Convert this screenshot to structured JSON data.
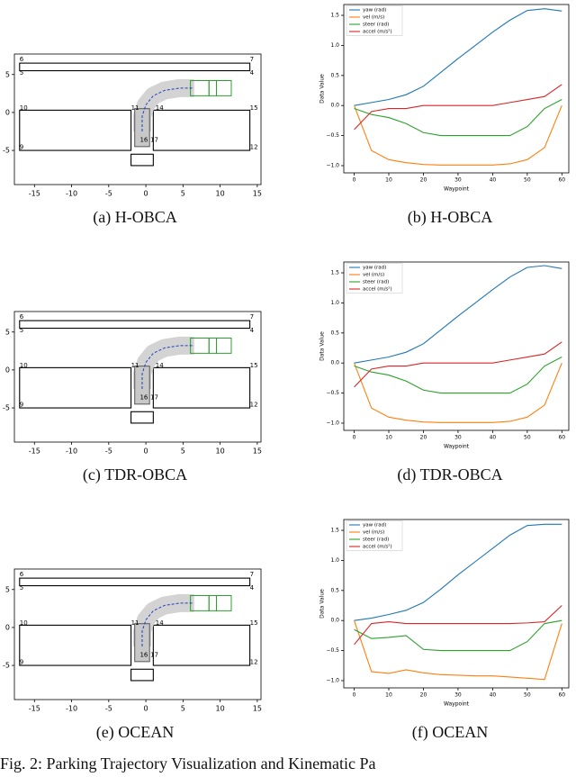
{
  "caption": "Fig. 2: Parking Trajectory Visualization and Kinematic Pa",
  "chart_data": [
    {
      "type": "trajectory",
      "subcaption": "(a) H-OBCA",
      "xlim": [
        -17.7,
        15.5
      ],
      "ylim": [
        -9.5,
        7.7
      ],
      "xticks": [
        -15,
        -10,
        -5,
        0,
        5,
        10,
        15
      ],
      "yticks": [
        -5,
        0,
        5
      ],
      "obstacles": [
        {
          "x": [
            -17,
            14
          ],
          "y": [
            5.5,
            6.5
          ]
        },
        {
          "x": [
            -17,
            -2
          ],
          "y": [
            -5,
            0.3
          ]
        },
        {
          "x": [
            1,
            14
          ],
          "y": [
            -5,
            0.3
          ]
        },
        {
          "x": [
            -2,
            1
          ],
          "y": [
            -7,
            -5.5
          ]
        }
      ],
      "labels": [
        {
          "text": "6",
          "x": -17,
          "y": 7
        },
        {
          "text": "7",
          "x": 14,
          "y": 7
        },
        {
          "text": "5",
          "x": -17,
          "y": 5.2
        },
        {
          "text": "4",
          "x": 14,
          "y": 5.2
        },
        {
          "text": "10",
          "x": -17,
          "y": 0.6
        },
        {
          "text": "11",
          "x": -2,
          "y": 0.6
        },
        {
          "text": "14",
          "x": 1.3,
          "y": 0.6
        },
        {
          "text": "15",
          "x": 14,
          "y": 0.6
        },
        {
          "text": "9",
          "x": -17,
          "y": -4.6
        },
        {
          "text": "12",
          "x": 14,
          "y": -4.6
        },
        {
          "text": "16",
          "x": -0.8,
          "y": -3.6
        },
        {
          "text": "17",
          "x": 0.6,
          "y": -3.6
        }
      ],
      "trajectory": {
        "x": [
          -0.5,
          -0.5,
          0,
          1,
          2.5,
          4.5,
          6.5
        ],
        "y": [
          -2.5,
          -0.5,
          1,
          2.2,
          2.9,
          3.2,
          3.2
        ]
      },
      "vehicle_boxes": [
        {
          "x": [
            -1.5,
            0.5
          ],
          "y": [
            -4.5,
            0.5
          ]
        },
        {
          "x": [
            6,
            8.5
          ],
          "y": [
            2.2,
            4.2
          ]
        },
        {
          "x": [
            8.5,
            9.5
          ],
          "y": [
            2.2,
            4.2
          ]
        },
        {
          "x": [
            9.5,
            11.5
          ],
          "y": [
            2.2,
            4.2
          ]
        }
      ]
    },
    {
      "type": "line",
      "subcaption": "(b) H-OBCA",
      "x_label": "Waypoint",
      "y_label": "Data Value",
      "xlim": [
        -3,
        62
      ],
      "ylim": [
        -1.12,
        1.68
      ],
      "xticks": [
        0,
        10,
        20,
        30,
        40,
        50,
        60
      ],
      "yticks": [
        {
          "value": -1,
          "label": "−1.0"
        },
        {
          "value": -0.5,
          "label": "−0.5"
        },
        {
          "value": 0,
          "label": "0.0"
        },
        {
          "value": 0.5,
          "label": "0.5"
        },
        {
          "value": 1,
          "label": "1.0"
        },
        {
          "value": 1.5,
          "label": "1.5"
        }
      ],
      "x": [
        0,
        5,
        10,
        15,
        20,
        25,
        30,
        35,
        40,
        45,
        50,
        55,
        60
      ],
      "series": [
        {
          "name": "yaw (rad)",
          "color": "#1f77b4",
          "values": [
            0.0,
            0.05,
            0.1,
            0.18,
            0.32,
            0.55,
            0.78,
            1.0,
            1.22,
            1.42,
            1.58,
            1.61,
            1.57
          ]
        },
        {
          "name": "vel (m/s)",
          "color": "#ff7f0e",
          "values": [
            0.0,
            -0.75,
            -0.9,
            -0.95,
            -0.98,
            -0.99,
            -0.99,
            -0.99,
            -0.99,
            -0.97,
            -0.9,
            -0.7,
            0.0
          ]
        },
        {
          "name": "steer (rad)",
          "color": "#2ca02c",
          "values": [
            -0.05,
            -0.15,
            -0.2,
            -0.3,
            -0.45,
            -0.5,
            -0.5,
            -0.5,
            -0.5,
            -0.5,
            -0.35,
            -0.05,
            0.1
          ]
        },
        {
          "name": "accel (m/s²)",
          "color": "#d62728",
          "values": [
            -0.4,
            -0.1,
            -0.05,
            -0.05,
            0.0,
            0.0,
            0.0,
            0.0,
            0.0,
            0.05,
            0.1,
            0.15,
            0.35
          ]
        }
      ]
    },
    {
      "type": "trajectory",
      "subcaption": "(c) TDR-OBCA",
      "xlim": [
        -17.7,
        15.5
      ],
      "ylim": [
        -9.5,
        7.7
      ],
      "xticks": [
        -15,
        -10,
        -5,
        0,
        5,
        10,
        15
      ],
      "yticks": [
        -5,
        0,
        5
      ],
      "obstacles": [
        {
          "x": [
            -17,
            14
          ],
          "y": [
            5.5,
            6.5
          ]
        },
        {
          "x": [
            -17,
            -2
          ],
          "y": [
            -5,
            0.3
          ]
        },
        {
          "x": [
            1,
            14
          ],
          "y": [
            -5,
            0.3
          ]
        },
        {
          "x": [
            -2,
            1
          ],
          "y": [
            -7,
            -5.5
          ]
        }
      ],
      "labels": [
        {
          "text": "6",
          "x": -17,
          "y": 7
        },
        {
          "text": "7",
          "x": 14,
          "y": 7
        },
        {
          "text": "5",
          "x": -17,
          "y": 5.2
        },
        {
          "text": "4",
          "x": 14,
          "y": 5.2
        },
        {
          "text": "10",
          "x": -17,
          "y": 0.6
        },
        {
          "text": "11",
          "x": -2,
          "y": 0.6
        },
        {
          "text": "14",
          "x": 1.3,
          "y": 0.6
        },
        {
          "text": "15",
          "x": 14,
          "y": 0.6
        },
        {
          "text": "9",
          "x": -17,
          "y": -4.6
        },
        {
          "text": "12",
          "x": 14,
          "y": -4.6
        },
        {
          "text": "16",
          "x": -0.8,
          "y": -3.6
        },
        {
          "text": "17",
          "x": 0.6,
          "y": -3.6
        }
      ],
      "trajectory": {
        "x": [
          -0.5,
          -0.5,
          0,
          1,
          2.5,
          4.5,
          6.5
        ],
        "y": [
          -2.5,
          -0.5,
          1,
          2.2,
          2.9,
          3.2,
          3.2
        ]
      },
      "vehicle_boxes": [
        {
          "x": [
            -1.5,
            0.5
          ],
          "y": [
            -4.5,
            0.5
          ]
        },
        {
          "x": [
            6,
            8.5
          ],
          "y": [
            2.2,
            4.2
          ]
        },
        {
          "x": [
            8.5,
            9.5
          ],
          "y": [
            2.2,
            4.2
          ]
        },
        {
          "x": [
            9.5,
            11.5
          ],
          "y": [
            2.2,
            4.2
          ]
        }
      ]
    },
    {
      "type": "line",
      "subcaption": "(d) TDR-OBCA",
      "x_label": "Waypoint",
      "y_label": "Data Value",
      "xlim": [
        -3,
        62
      ],
      "ylim": [
        -1.12,
        1.68
      ],
      "xticks": [
        0,
        10,
        20,
        30,
        40,
        50,
        60
      ],
      "yticks": [
        {
          "value": -1,
          "label": "−1.0"
        },
        {
          "value": -0.5,
          "label": "−0.5"
        },
        {
          "value": 0,
          "label": "0.0"
        },
        {
          "value": 0.5,
          "label": "0.5"
        },
        {
          "value": 1,
          "label": "1.0"
        },
        {
          "value": 1.5,
          "label": "1.5"
        }
      ],
      "x": [
        0,
        5,
        10,
        15,
        20,
        25,
        30,
        35,
        40,
        45,
        50,
        55,
        60
      ],
      "series": [
        {
          "name": "yaw (rad)",
          "color": "#1f77b4",
          "values": [
            0.0,
            0.05,
            0.1,
            0.18,
            0.32,
            0.55,
            0.78,
            1.0,
            1.22,
            1.43,
            1.59,
            1.62,
            1.57
          ]
        },
        {
          "name": "vel (m/s)",
          "color": "#ff7f0e",
          "values": [
            0.0,
            -0.75,
            -0.9,
            -0.95,
            -0.98,
            -0.99,
            -0.99,
            -0.99,
            -0.99,
            -0.97,
            -0.9,
            -0.7,
            0.0
          ]
        },
        {
          "name": "steer (rad)",
          "color": "#2ca02c",
          "values": [
            -0.05,
            -0.15,
            -0.2,
            -0.3,
            -0.45,
            -0.5,
            -0.5,
            -0.5,
            -0.5,
            -0.5,
            -0.35,
            -0.05,
            0.1
          ]
        },
        {
          "name": "accel (m/s²)",
          "color": "#d62728",
          "values": [
            -0.4,
            -0.1,
            -0.05,
            -0.05,
            0.0,
            0.0,
            0.0,
            0.0,
            0.0,
            0.05,
            0.1,
            0.15,
            0.35
          ]
        }
      ]
    },
    {
      "type": "trajectory",
      "subcaption": "(e) OCEAN",
      "xlim": [
        -17.7,
        15.5
      ],
      "ylim": [
        -9.5,
        7.7
      ],
      "xticks": [
        -15,
        -10,
        -5,
        0,
        5,
        10,
        15
      ],
      "yticks": [
        -5,
        0,
        5
      ],
      "obstacles": [
        {
          "x": [
            -17,
            14
          ],
          "y": [
            5.5,
            6.5
          ]
        },
        {
          "x": [
            -17,
            -2
          ],
          "y": [
            -5,
            0.3
          ]
        },
        {
          "x": [
            1,
            14
          ],
          "y": [
            -5,
            0.3
          ]
        },
        {
          "x": [
            -2,
            1
          ],
          "y": [
            -7,
            -5.5
          ]
        }
      ],
      "labels": [
        {
          "text": "6",
          "x": -17,
          "y": 7
        },
        {
          "text": "7",
          "x": 14,
          "y": 7
        },
        {
          "text": "5",
          "x": -17,
          "y": 5.2
        },
        {
          "text": "4",
          "x": 14,
          "y": 5.2
        },
        {
          "text": "10",
          "x": -17,
          "y": 0.6
        },
        {
          "text": "11",
          "x": -2,
          "y": 0.6
        },
        {
          "text": "14",
          "x": 1.3,
          "y": 0.6
        },
        {
          "text": "15",
          "x": 14,
          "y": 0.6
        },
        {
          "text": "9",
          "x": -17,
          "y": -4.6
        },
        {
          "text": "12",
          "x": 14,
          "y": -4.6
        },
        {
          "text": "16",
          "x": -0.8,
          "y": -3.6
        },
        {
          "text": "17",
          "x": 0.6,
          "y": -3.6
        }
      ],
      "trajectory": {
        "x": [
          -0.5,
          -0.5,
          0,
          1,
          2.5,
          4.5,
          6.5
        ],
        "y": [
          -2.5,
          -0.5,
          1,
          2.2,
          2.9,
          3.2,
          3.2
        ]
      },
      "vehicle_boxes": [
        {
          "x": [
            -1.5,
            0.5
          ],
          "y": [
            -4.5,
            0.5
          ]
        },
        {
          "x": [
            6,
            8.5
          ],
          "y": [
            2.2,
            4.2
          ]
        },
        {
          "x": [
            8.5,
            9.5
          ],
          "y": [
            2.2,
            4.2
          ]
        },
        {
          "x": [
            9.5,
            11.5
          ],
          "y": [
            2.2,
            4.2
          ]
        }
      ]
    },
    {
      "type": "line",
      "subcaption": "(f) OCEAN",
      "x_label": "Waypoint",
      "y_label": "Data Value",
      "xlim": [
        -3,
        62
      ],
      "ylim": [
        -1.12,
        1.68
      ],
      "xticks": [
        0,
        10,
        20,
        30,
        40,
        50,
        60
      ],
      "yticks": [
        {
          "value": -1,
          "label": "−1.0"
        },
        {
          "value": -0.5,
          "label": "−0.5"
        },
        {
          "value": 0,
          "label": "0.0"
        },
        {
          "value": 0.5,
          "label": "0.5"
        },
        {
          "value": 1,
          "label": "1.0"
        },
        {
          "value": 1.5,
          "label": "1.5"
        }
      ],
      "x": [
        0,
        5,
        10,
        15,
        20,
        25,
        30,
        35,
        40,
        45,
        50,
        55,
        60
      ],
      "series": [
        {
          "name": "yaw (rad)",
          "color": "#1f77b4",
          "values": [
            0.0,
            0.04,
            0.1,
            0.17,
            0.3,
            0.52,
            0.76,
            0.98,
            1.2,
            1.42,
            1.58,
            1.6,
            1.6
          ]
        },
        {
          "name": "vel (m/s)",
          "color": "#ff7f0e",
          "values": [
            0.0,
            -0.85,
            -0.88,
            -0.82,
            -0.87,
            -0.9,
            -0.91,
            -0.92,
            -0.92,
            -0.94,
            -0.96,
            -0.98,
            -0.05
          ]
        },
        {
          "name": "steer (rad)",
          "color": "#2ca02c",
          "values": [
            -0.15,
            -0.3,
            -0.28,
            -0.25,
            -0.48,
            -0.5,
            -0.5,
            -0.5,
            -0.5,
            -0.5,
            -0.35,
            -0.05,
            0.0
          ]
        },
        {
          "name": "accel (m/s²)",
          "color": "#d62728",
          "values": [
            -0.4,
            -0.05,
            -0.02,
            -0.05,
            -0.05,
            -0.05,
            -0.05,
            -0.05,
            -0.05,
            -0.05,
            -0.04,
            -0.02,
            0.25
          ]
        }
      ]
    }
  ]
}
